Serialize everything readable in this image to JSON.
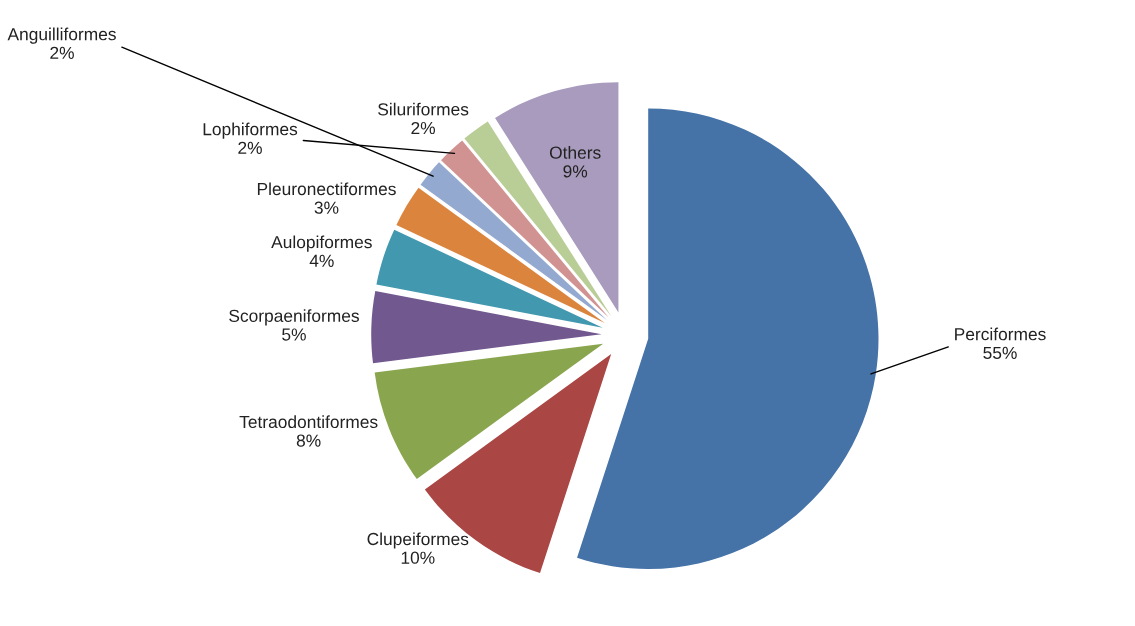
{
  "chart_data": {
    "type": "pie",
    "categories": [
      "Perciformes",
      "Clupeiformes",
      "Tetraodontiformes",
      "Scorpaeniformes",
      "Aulopiformes",
      "Pleuronectiformes",
      "Anguilliformes",
      "Lophiformes",
      "Siluriformes",
      "Others"
    ],
    "values": [
      55,
      10,
      8,
      5,
      4,
      3,
      2,
      2,
      2,
      9
    ],
    "value_labels": [
      "55%",
      "10%",
      "8%",
      "5%",
      "4%",
      "3%",
      "2%",
      "2%",
      "2%",
      "9%"
    ],
    "colors": [
      "#4572a7",
      "#aa4643",
      "#89a54e",
      "#71588f",
      "#4198af",
      "#db843d",
      "#93a9cf",
      "#d19392",
      "#b9cd96",
      "#a99bbd"
    ],
    "legend": false
  }
}
